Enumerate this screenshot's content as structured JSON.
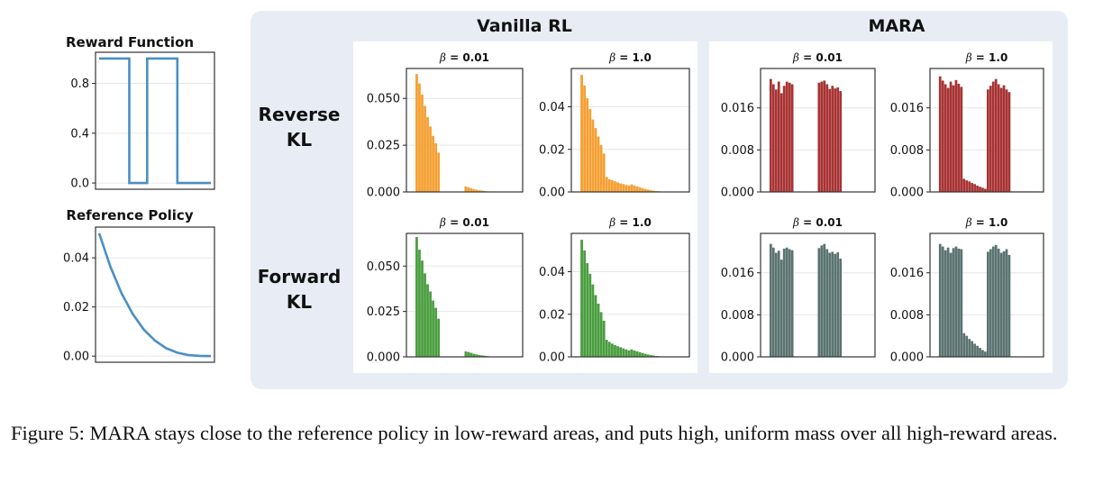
{
  "caption": "Figure 5: MARA stays close to the reference policy in low-reward areas, and puts high, uniform mass over all high-reward areas.",
  "column_headers": [
    "Vanilla RL",
    "MARA"
  ],
  "row_labels": [
    [
      "Reverse",
      "KL"
    ],
    [
      "Forward",
      "KL"
    ]
  ],
  "beta_symbol": "β",
  "colors": {
    "line": "#4a8fc4",
    "vanilla_reverse": "#f5a033",
    "vanilla_forward": "#4a9e3f",
    "mara_reverse": "#a83232",
    "mara_forward": "#5a7370",
    "panel_bg": "#e8edf5"
  },
  "chart_data": [
    {
      "id": "reward",
      "type": "line",
      "title": "Reward Function",
      "ylim": [
        -0.05,
        1.05
      ],
      "yticks": [
        "0.0",
        "0.4",
        "0.8"
      ],
      "grid": true,
      "x": [
        0,
        0.27,
        0.27,
        0.43,
        0.43,
        0.7,
        0.7,
        1
      ],
      "y": [
        1,
        1,
        0,
        0,
        1,
        1,
        0,
        0
      ]
    },
    {
      "id": "reference",
      "type": "line",
      "title": "Reference Policy",
      "ylim": [
        -0.0025,
        0.0525
      ],
      "yticks": [
        "0.00",
        "0.02",
        "0.04"
      ],
      "grid": true,
      "x": [
        0,
        0.1,
        0.2,
        0.3,
        0.4,
        0.5,
        0.6,
        0.7,
        0.8,
        0.9,
        1
      ],
      "y": [
        0.05,
        0.0365,
        0.0256,
        0.0172,
        0.0108,
        0.0063,
        0.0032,
        0.0014,
        0.0004,
        0.0001,
        0
      ]
    },
    {
      "id": "vanilla-reverse-b001",
      "type": "bar",
      "group": "Vanilla RL",
      "row": "Reverse KL",
      "beta": "0.01",
      "color_key": "vanilla_reverse",
      "ylim": [
        0,
        0.066
      ],
      "yticks": [
        "0.000",
        "0.025",
        "0.050"
      ],
      "grid": true,
      "values": [
        0,
        0,
        0.063,
        0.058,
        0.052,
        0.046,
        0.04,
        0.035,
        0.03,
        0.026,
        0.021,
        0,
        0,
        0,
        0,
        0,
        0,
        0,
        0,
        0,
        0.003,
        0.0025,
        0.002,
        0.0015,
        0.0012,
        0.0009,
        0.0007,
        0.0005,
        0.0003,
        0,
        0,
        0,
        0,
        0,
        0,
        0,
        0,
        0,
        0,
        0
      ]
    },
    {
      "id": "vanilla-reverse-b1",
      "type": "bar",
      "group": "Vanilla RL",
      "row": "Reverse KL",
      "beta": "1.0",
      "color_key": "vanilla_reverse",
      "ylim": [
        0,
        0.058
      ],
      "yticks": [
        "0.00",
        "0.02",
        "0.04"
      ],
      "grid": true,
      "values": [
        0,
        0,
        0.055,
        0.05,
        0.044,
        0.039,
        0.034,
        0.03,
        0.026,
        0.022,
        0.018,
        0.007,
        0.006,
        0.0055,
        0.005,
        0.0045,
        0.004,
        0.0037,
        0.0033,
        0.003,
        0.0035,
        0.003,
        0.0026,
        0.0022,
        0.0018,
        0.0014,
        0.0011,
        0.0008,
        0.0006,
        0.0004,
        0.0003,
        0.0002,
        0.0001,
        0,
        0,
        0,
        0,
        0,
        0,
        0
      ]
    },
    {
      "id": "mara-reverse-b001",
      "type": "bar",
      "group": "MARA",
      "row": "Reverse KL",
      "beta": "0.01",
      "color_key": "mara_reverse",
      "ylim": [
        0,
        0.0235
      ],
      "yticks": [
        "0.000",
        "0.008",
        "0.016"
      ],
      "grid": true,
      "values": [
        0,
        0,
        0.0215,
        0.0205,
        0.0195,
        0.021,
        0.0188,
        0.0202,
        0.021,
        0.0208,
        0.0205,
        0,
        0,
        0,
        0,
        0,
        0,
        0,
        0,
        0,
        0.0208,
        0.021,
        0.0212,
        0.0205,
        0.0196,
        0.0202,
        0.0197,
        0.0199,
        0.0192,
        0,
        0,
        0,
        0,
        0,
        0,
        0,
        0,
        0,
        0,
        0
      ]
    },
    {
      "id": "mara-reverse-b1",
      "type": "bar",
      "group": "MARA",
      "row": "Reverse KL",
      "beta": "1.0",
      "color_key": "mara_reverse",
      "ylim": [
        0,
        0.0235
      ],
      "yticks": [
        "0.000",
        "0.008",
        "0.016"
      ],
      "grid": true,
      "values": [
        0,
        0,
        0.022,
        0.0212,
        0.0205,
        0.0198,
        0.021,
        0.0203,
        0.0213,
        0.0206,
        0.02,
        0.0025,
        0.0022,
        0.002,
        0.0017,
        0.0015,
        0.0012,
        0.001,
        0.0008,
        0.0006,
        0.0195,
        0.0202,
        0.021,
        0.0215,
        0.0205,
        0.0198,
        0.0203,
        0.0195,
        0.019,
        0.0001,
        0.0001,
        0.0001,
        0.0001,
        0.0001,
        0.0001,
        0.0001,
        0.0001,
        0.0001,
        0.0001,
        0.0001
      ]
    },
    {
      "id": "vanilla-forward-b001",
      "type": "bar",
      "group": "Vanilla RL",
      "row": "Forward KL",
      "beta": "0.01",
      "color_key": "vanilla_forward",
      "ylim": [
        0,
        0.068
      ],
      "yticks": [
        "0.000",
        "0.025",
        "0.050"
      ],
      "grid": true,
      "values": [
        0,
        0,
        0.066,
        0.059,
        0.053,
        0.046,
        0.04,
        0.036,
        0.031,
        0.027,
        0.021,
        0,
        0,
        0,
        0,
        0,
        0,
        0,
        0,
        0,
        0.003,
        0.0027,
        0.0022,
        0.0017,
        0.0013,
        0.001,
        0.0008,
        0.0006,
        0.0004,
        0,
        0,
        0,
        0,
        0,
        0,
        0,
        0,
        0,
        0,
        0
      ]
    },
    {
      "id": "vanilla-forward-b1",
      "type": "bar",
      "group": "Vanilla RL",
      "row": "Forward KL",
      "beta": "1.0",
      "color_key": "vanilla_forward",
      "ylim": [
        0,
        0.058
      ],
      "yticks": [
        "0.00",
        "0.02",
        "0.04"
      ],
      "grid": true,
      "values": [
        0,
        0,
        0.055,
        0.05,
        0.044,
        0.039,
        0.034,
        0.029,
        0.025,
        0.021,
        0.017,
        0.008,
        0.007,
        0.0062,
        0.0055,
        0.005,
        0.0045,
        0.004,
        0.0035,
        0.003,
        0.0035,
        0.003,
        0.0026,
        0.0022,
        0.0018,
        0.0014,
        0.0011,
        0.0008,
        0.0006,
        0.0004,
        0.0003,
        0.0002,
        0.0001,
        0,
        0,
        0,
        0,
        0,
        0,
        0
      ]
    },
    {
      "id": "mara-forward-b001",
      "type": "bar",
      "group": "MARA",
      "row": "Forward KL",
      "beta": "0.01",
      "color_key": "mara_forward",
      "ylim": [
        0,
        0.0235
      ],
      "yticks": [
        "0.000",
        "0.008",
        "0.016"
      ],
      "grid": true,
      "values": [
        0,
        0,
        0.0215,
        0.0208,
        0.0198,
        0.0202,
        0.0185,
        0.0206,
        0.0208,
        0.0205,
        0.0203,
        0,
        0,
        0,
        0,
        0,
        0,
        0,
        0,
        0,
        0.0207,
        0.0212,
        0.0215,
        0.0205,
        0.0198,
        0.02,
        0.0196,
        0.0199,
        0.0187,
        0,
        0,
        0,
        0,
        0,
        0,
        0,
        0,
        0,
        0,
        0
      ]
    },
    {
      "id": "mara-forward-b1",
      "type": "bar",
      "group": "MARA",
      "row": "Forward KL",
      "beta": "1.0",
      "color_key": "mara_forward",
      "ylim": [
        0,
        0.0235
      ],
      "yticks": [
        "0.000",
        "0.008",
        "0.016"
      ],
      "grid": true,
      "values": [
        0,
        0,
        0.0215,
        0.021,
        0.0203,
        0.0208,
        0.0198,
        0.0207,
        0.021,
        0.0206,
        0.0205,
        0.0045,
        0.004,
        0.0034,
        0.003,
        0.0025,
        0.0021,
        0.0017,
        0.0013,
        0.001,
        0.02,
        0.0205,
        0.021,
        0.0213,
        0.0206,
        0.0198,
        0.0201,
        0.0205,
        0.0194,
        0,
        0,
        0,
        0,
        0,
        0,
        0,
        0,
        0,
        0,
        0
      ]
    }
  ]
}
